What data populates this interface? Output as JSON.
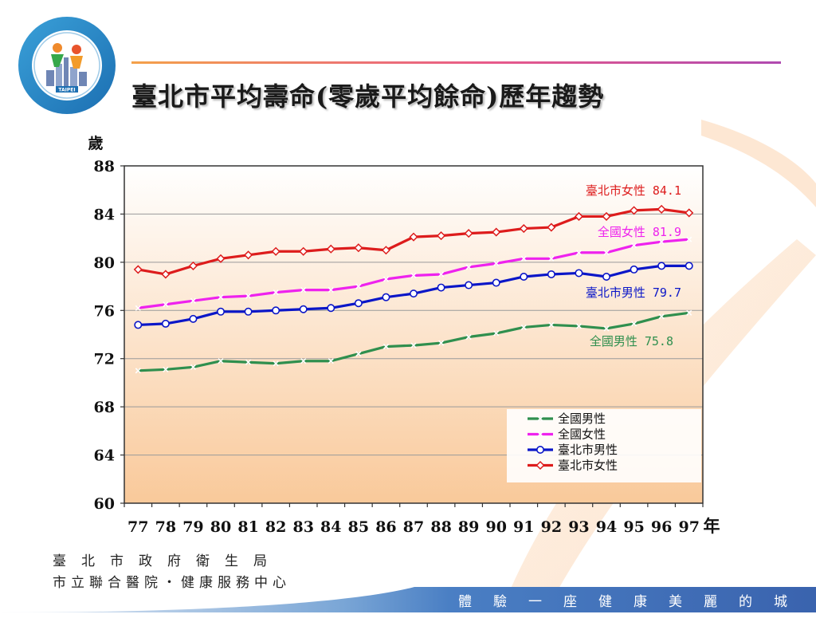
{
  "header": {
    "title": "臺北市平均壽命(零歲平均餘命)歷年趨勢"
  },
  "footer": {
    "org_line1": "臺北市政府衛生局",
    "org_line2": "市立聯合醫院・健康服務中心",
    "slogan": "體驗一座健康美麗的城市"
  },
  "colors": {
    "taipei_female": "#dd1c1c",
    "national_female": "#ee22ee",
    "taipei_male": "#0a16c8",
    "national_male": "#2f8f4e",
    "plot_top": "#ffffff",
    "plot_bottom": "#f9c99a"
  },
  "chart_data": {
    "type": "line",
    "ylabel": "歲",
    "xlabel": "年",
    "ylim": [
      60,
      88
    ],
    "yticks": [
      60,
      64,
      68,
      72,
      76,
      80,
      84,
      88
    ],
    "grid": true,
    "legend_placement": "bottom-right",
    "categories": [
      "77",
      "78",
      "79",
      "80",
      "81",
      "82",
      "83",
      "84",
      "85",
      "86",
      "87",
      "88",
      "89",
      "90",
      "91",
      "92",
      "93",
      "94",
      "95",
      "96",
      "97"
    ],
    "series": [
      {
        "key": "national_male",
        "name": "全國男性",
        "marker": "x",
        "end_label": "全國男性 75.8",
        "values": [
          71.0,
          71.1,
          71.3,
          71.8,
          71.7,
          71.6,
          71.8,
          71.8,
          72.4,
          73.0,
          73.1,
          73.3,
          73.8,
          74.1,
          74.6,
          74.8,
          74.7,
          74.5,
          74.9,
          75.5,
          75.8
        ]
      },
      {
        "key": "national_female",
        "name": "全國女性",
        "marker": "x",
        "end_label": "全國女性 81.9",
        "values": [
          76.2,
          76.5,
          76.8,
          77.1,
          77.2,
          77.5,
          77.7,
          77.7,
          78.0,
          78.6,
          78.9,
          79.0,
          79.6,
          79.9,
          80.3,
          80.3,
          80.8,
          80.8,
          81.4,
          81.7,
          81.9
        ]
      },
      {
        "key": "taipei_male",
        "name": "臺北市男性",
        "marker": "circle",
        "end_label": "臺北市男性 79.7",
        "values": [
          74.8,
          74.9,
          75.3,
          75.9,
          75.9,
          76.0,
          76.1,
          76.2,
          76.6,
          77.1,
          77.4,
          77.9,
          78.1,
          78.3,
          78.8,
          79.0,
          79.1,
          78.8,
          79.4,
          79.7,
          79.7
        ]
      },
      {
        "key": "taipei_female",
        "name": "臺北市女性",
        "marker": "diamond",
        "end_label": "臺北市女性 84.1",
        "values": [
          79.4,
          79.0,
          79.7,
          80.3,
          80.6,
          80.9,
          80.9,
          81.1,
          81.2,
          81.0,
          82.1,
          82.2,
          82.4,
          82.5,
          82.8,
          82.9,
          83.8,
          83.8,
          84.3,
          84.4,
          84.1
        ]
      }
    ]
  }
}
